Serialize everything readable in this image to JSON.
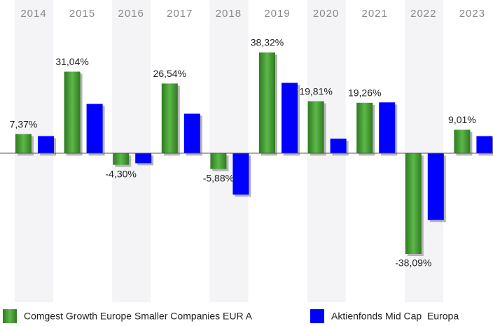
{
  "chart_data": {
    "type": "bar",
    "categories": [
      "2014",
      "2015",
      "2016",
      "2017",
      "2018",
      "2019",
      "2020",
      "2021",
      "2022",
      "2023"
    ],
    "series": [
      {
        "name": "Comgest Growth Europe Smaller Companies EUR A",
        "color": "#3a8f2a",
        "values": [
          7.37,
          31.04,
          -4.3,
          26.54,
          -5.88,
          38.32,
          19.81,
          19.26,
          -38.09,
          9.01
        ],
        "value_labels": [
          "7,37%",
          "31,04%",
          "-4,30%",
          "26,54%",
          "-5,88%",
          "38,32%",
          "19,81%",
          "19,26%",
          "-38,09%",
          "9,01%"
        ]
      },
      {
        "name": "Aktienfonds Mid Cap  Europa",
        "color": "#0000ff",
        "values": [
          6.6,
          18.8,
          -3.7,
          15.1,
          -15.6,
          26.8,
          5.6,
          19.4,
          -25.2,
          6.6
        ]
      }
    ]
  }
}
